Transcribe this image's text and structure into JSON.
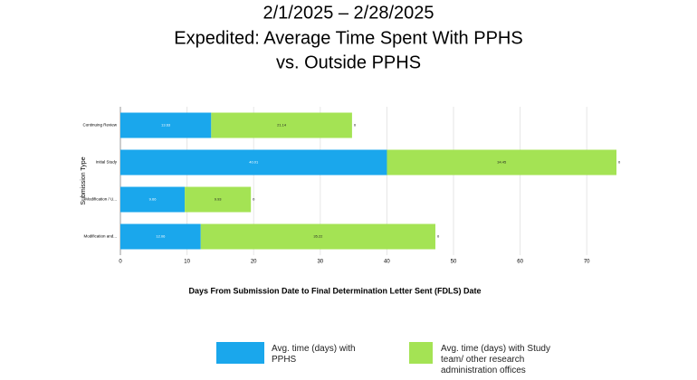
{
  "chart_data": {
    "type": "stacked-barh",
    "title_lines": [
      "2/1/2025 – 2/28/2025",
      "Expedited: Average Time Spent With PPHS",
      "vs. Outside PPHS"
    ],
    "x_label": "Days From Submission Date to Final Determination Letter Sent (FDLS) Date",
    "y_label": "Submission Type",
    "categories": [
      "Continuing Review",
      "Initial Study",
      "Modification / U...",
      "Modification and..."
    ],
    "series": [
      {
        "name": "Avg. time (days) with PPHS",
        "color": "#1aa7ec",
        "values": [
          13.63,
          40.01,
          9.66,
          12.06
        ]
      },
      {
        "name": "Avg. time (days) with Study team/ other research administration offices",
        "color": "#a4e354",
        "values": [
          21.14,
          34.45,
          9.93,
          35.22
        ]
      }
    ],
    "end_labels": [
      "0",
      "0",
      "0",
      "0"
    ],
    "xlim": [
      0,
      75
    ],
    "xticks": [
      0,
      10,
      20,
      30,
      40,
      50,
      60,
      70
    ],
    "grid": true
  }
}
